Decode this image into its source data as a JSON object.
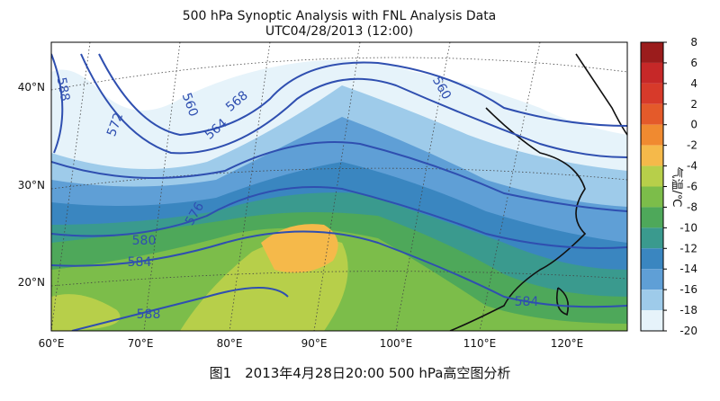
{
  "title": "500 hPa Synoptic Analysis with FNL Analysis Data",
  "subtitle": "UTC04/28/2013 (12:00)",
  "caption": "图1　2013年4月28日20:00 500 hPa高空图分析",
  "colorbar": {
    "label": "气温/℃",
    "ticks": [
      8,
      6,
      4,
      2,
      0,
      -2,
      -4,
      -6,
      -8,
      -10,
      -12,
      -14,
      -16,
      -18,
      -20
    ],
    "colors": [
      "#9b1c1c",
      "#c62828",
      "#d73a2a",
      "#e45a2a",
      "#f08a30",
      "#f5b94a",
      "#b7cf4a",
      "#7cbd4a",
      "#4ea85a",
      "#3a9a8e",
      "#3a86c0",
      "#5f9fd6",
      "#9ecbea",
      "#e6f3fa"
    ]
  },
  "lat_labels": [
    "40°N",
    "30°N",
    "20°N"
  ],
  "lon_labels": [
    "60°E",
    "70°E",
    "80°E",
    "90°E",
    "100°E",
    "110°E",
    "120°E"
  ],
  "contour_labels": [
    "588",
    "572",
    "560",
    "564",
    "568",
    "560",
    "576",
    "580",
    "584",
    "588",
    "584"
  ]
}
